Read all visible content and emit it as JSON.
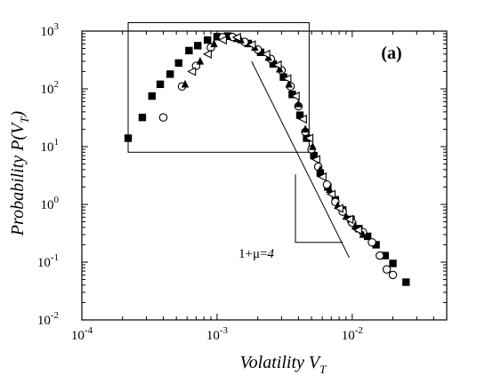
{
  "chart_data": {
    "type": "scatter",
    "title": "",
    "panel_label": "(a)",
    "xlabel": "Volatility V",
    "xlabel_sub": "T",
    "ylabel": "Probability P(V",
    "ylabel_sub": "T",
    "ylabel_end": ")",
    "xscale": "log",
    "yscale": "log",
    "xlim": [
      0.0001,
      0.05
    ],
    "ylim": [
      0.01,
      1000
    ],
    "x_ticks": [
      {
        "value": 0.0001,
        "mantissa": "10",
        "exp": "-4"
      },
      {
        "value": 0.001,
        "mantissa": "10",
        "exp": "-3"
      },
      {
        "value": 0.01,
        "mantissa": "10",
        "exp": "-2"
      }
    ],
    "y_ticks": [
      {
        "value": 0.01,
        "mantissa": "10",
        "exp": "-2"
      },
      {
        "value": 0.1,
        "mantissa": "10",
        "exp": "-1"
      },
      {
        "value": 1,
        "mantissa": "10",
        "exp": "0"
      },
      {
        "value": 10,
        "mantissa": "10",
        "exp": "1"
      },
      {
        "value": 100,
        "mantissa": "10",
        "exp": "2"
      },
      {
        "value": 1000,
        "mantissa": "10",
        "exp": "3"
      }
    ],
    "grid": false,
    "legend": "none",
    "series": [
      {
        "marker": "filled-square",
        "points": [
          [
            0.00022,
            14
          ],
          [
            0.00028,
            32
          ],
          [
            0.00033,
            75
          ],
          [
            0.00038,
            120
          ],
          [
            0.00045,
            180
          ],
          [
            0.00052,
            280
          ],
          [
            0.00062,
            460
          ],
          [
            0.00072,
            560
          ],
          [
            0.00085,
            700
          ],
          [
            0.001,
            800
          ],
          [
            0.0012,
            820
          ],
          [
            0.0014,
            750
          ],
          [
            0.0017,
            610
          ],
          [
            0.0021,
            430
          ],
          [
            0.0026,
            270
          ],
          [
            0.0031,
            160
          ],
          [
            0.0036,
            80
          ],
          [
            0.0041,
            35
          ],
          [
            0.0046,
            14
          ],
          [
            0.0052,
            7
          ],
          [
            0.0058,
            3.5
          ],
          [
            0.0066,
            2
          ],
          [
            0.0075,
            1.2
          ],
          [
            0.0085,
            0.8
          ],
          [
            0.0098,
            0.55
          ],
          [
            0.0112,
            0.38
          ],
          [
            0.013,
            0.28
          ],
          [
            0.015,
            0.2
          ],
          [
            0.0175,
            0.13
          ],
          [
            0.02,
            0.095
          ],
          [
            0.025,
            0.045
          ]
        ]
      },
      {
        "marker": "open-circle",
        "points": [
          [
            0.0004,
            32
          ],
          [
            0.00055,
            110
          ],
          [
            0.0007,
            250
          ],
          [
            0.0009,
            520
          ],
          [
            0.0011,
            780
          ],
          [
            0.0013,
            790
          ],
          [
            0.0016,
            650
          ],
          [
            0.002,
            480
          ],
          [
            0.0025,
            330
          ],
          [
            0.003,
            210
          ],
          [
            0.0035,
            110
          ],
          [
            0.004,
            50
          ],
          [
            0.0045,
            18
          ],
          [
            0.005,
            9
          ],
          [
            0.0056,
            4.5
          ],
          [
            0.0065,
            2.2
          ],
          [
            0.0075,
            1.1
          ],
          [
            0.0085,
            0.75
          ],
          [
            0.01,
            0.48
          ],
          [
            0.012,
            0.33
          ],
          [
            0.014,
            0.22
          ],
          [
            0.016,
            0.13
          ],
          [
            0.018,
            0.075
          ],
          [
            0.02,
            0.06
          ]
        ]
      },
      {
        "marker": "filled-triangle",
        "points": [
          [
            0.00058,
            120
          ],
          [
            0.00075,
            300
          ],
          [
            0.00095,
            600
          ],
          [
            0.0012,
            800
          ],
          [
            0.0015,
            700
          ],
          [
            0.0019,
            520
          ],
          [
            0.0024,
            350
          ],
          [
            0.0029,
            220
          ],
          [
            0.0034,
            120
          ],
          [
            0.004,
            55
          ],
          [
            0.0045,
            20
          ],
          [
            0.0051,
            10
          ],
          [
            0.0058,
            4
          ],
          [
            0.0068,
            1.8
          ],
          [
            0.0078,
            0.95
          ],
          [
            0.009,
            0.62
          ],
          [
            0.0105,
            0.42
          ],
          [
            0.012,
            0.3
          ]
        ]
      },
      {
        "marker": "open-triangle",
        "points": [
          [
            0.00065,
            200
          ],
          [
            0.00085,
            400
          ],
          [
            0.0011,
            700
          ],
          [
            0.0014,
            780
          ],
          [
            0.0018,
            580
          ],
          [
            0.0023,
            400
          ],
          [
            0.0028,
            260
          ],
          [
            0.0033,
            150
          ],
          [
            0.0038,
            75
          ],
          [
            0.0043,
            30
          ],
          [
            0.0048,
            14
          ],
          [
            0.0054,
            6
          ],
          [
            0.006,
            3
          ],
          [
            0.007,
            1.5
          ],
          [
            0.008,
            0.85
          ],
          [
            0.0095,
            0.55
          ],
          [
            0.011,
            0.36
          ]
        ]
      }
    ],
    "power_law_line": {
      "x1": 0.0018,
      "y1": 300,
      "x2": 0.0095,
      "y2": 0.12
    },
    "slope_triangle": {
      "x_left": 0.0038,
      "x_right": 0.0085,
      "y_top": 3.3,
      "y_bottom": 0.22
    },
    "annotation": {
      "prefix": "1+",
      "mu": "μ",
      "eq": "=",
      "value": "4"
    },
    "inset_box": {
      "x1": 0.00022,
      "x2": 0.0048,
      "y1": 8,
      "y2": 1400
    }
  }
}
